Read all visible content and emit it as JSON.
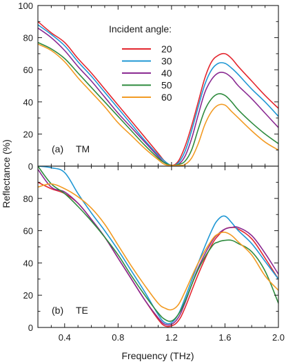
{
  "colors": {
    "20": "#e3262e",
    "30": "#1f97d4",
    "40": "#8a2a92",
    "50": "#2e8b3e",
    "60": "#f29a22",
    "axis": "#1a1a1a"
  },
  "chart_data": [
    {
      "id": "top",
      "type": "line",
      "panel_label": "(a)",
      "mode": "TM",
      "ylabel": "",
      "xlim": [
        0.2,
        2.0
      ],
      "ylim": [
        0,
        100
      ],
      "xticks": [
        0.4,
        0.8,
        1.2,
        1.6,
        2.0
      ],
      "yticks": [
        0,
        20,
        40,
        60,
        80,
        100
      ],
      "ytick_labels": [
        "0",
        "20",
        "40",
        "60",
        "80",
        "100"
      ],
      "legend_title": "Incident angle:",
      "legend_position": "top-right",
      "x": [
        0.2,
        0.3,
        0.4,
        0.5,
        0.6,
        0.7,
        0.8,
        0.9,
        1.0,
        1.1,
        1.15,
        1.2,
        1.25,
        1.3,
        1.35,
        1.4,
        1.45,
        1.5,
        1.55,
        1.6,
        1.65,
        1.7,
        1.8,
        1.9,
        2.0
      ],
      "series": [
        {
          "name": "20",
          "values": [
            90,
            83,
            77,
            67,
            58,
            48,
            38,
            28,
            18,
            8,
            3,
            0.5,
            3,
            12,
            25,
            40,
            55,
            65,
            69,
            70,
            67,
            62,
            53,
            44,
            36
          ]
        },
        {
          "name": "30",
          "values": [
            88,
            82,
            75,
            65,
            56,
            46,
            36,
            26,
            16,
            7,
            3,
            0.5,
            2,
            9,
            22,
            37,
            51,
            60,
            64,
            64,
            61,
            57,
            48,
            40,
            31
          ]
        },
        {
          "name": "40",
          "values": [
            86,
            80,
            72,
            62,
            53,
            43,
            33,
            24,
            15,
            6,
            2,
            0.5,
            1,
            6,
            17,
            32,
            46,
            54,
            58,
            58,
            55,
            50,
            42,
            33,
            24
          ]
        },
        {
          "name": "50",
          "values": [
            77,
            73,
            67,
            58,
            49,
            40,
            31,
            22,
            13,
            5,
            2,
            0.5,
            1,
            3,
            10,
            23,
            35,
            42,
            45,
            44,
            40,
            35,
            27,
            20,
            14
          ]
        },
        {
          "name": "60",
          "values": [
            76,
            72,
            65,
            55,
            46,
            37,
            27,
            19,
            11,
            4,
            1,
            0.5,
            0.5,
            1,
            5,
            14,
            26,
            34,
            38,
            38,
            34,
            30,
            22,
            15,
            10
          ]
        }
      ]
    },
    {
      "id": "bottom",
      "type": "line",
      "panel_label": "(b)",
      "mode": "TE",
      "xlabel": "Frequency (THz)",
      "xlim": [
        0.2,
        2.0
      ],
      "ylim": [
        0,
        100
      ],
      "xticks": [
        0.4,
        0.8,
        1.2,
        1.6,
        2.0
      ],
      "xtick_labels": [
        "0.4",
        "0.8",
        "1.2",
        "1.6",
        "2.0"
      ],
      "yticks": [
        0,
        20,
        40,
        60,
        80
      ],
      "ytick_labels": [
        "0",
        "20",
        "40",
        "60",
        "80"
      ],
      "x": [
        0.2,
        0.3,
        0.4,
        0.5,
        0.6,
        0.7,
        0.8,
        0.9,
        1.0,
        1.1,
        1.15,
        1.2,
        1.25,
        1.3,
        1.4,
        1.5,
        1.55,
        1.6,
        1.65,
        1.7,
        1.8,
        1.9,
        2.0
      ],
      "series": [
        {
          "name": "20",
          "values": [
            90,
            86,
            83,
            77,
            67,
            56,
            43,
            30,
            17,
            5,
            1,
            1,
            4,
            12,
            33,
            51,
            57,
            61,
            62,
            61,
            55,
            43,
            30
          ]
        },
        {
          "name": "30",
          "values": [
            100,
            99,
            96,
            83,
            71,
            60,
            48,
            35,
            22,
            8,
            3,
            3,
            8,
            18,
            40,
            60,
            67,
            69,
            65,
            60,
            52,
            41,
            30
          ]
        },
        {
          "name": "40",
          "values": [
            98,
            87,
            84,
            77,
            67,
            56,
            43,
            30,
            17,
            6,
            2,
            2,
            6,
            15,
            37,
            53,
            58,
            61,
            62,
            62,
            57,
            46,
            33
          ]
        },
        {
          "name": "50",
          "values": [
            100,
            89,
            83,
            75,
            66,
            56,
            45,
            32,
            20,
            9,
            5,
            4,
            8,
            16,
            36,
            50,
            53,
            54,
            54,
            52,
            47,
            35,
            15
          ]
        },
        {
          "name": "60",
          "values": [
            87,
            89,
            86,
            81,
            74,
            64,
            51,
            38,
            26,
            15,
            12,
            11,
            14,
            22,
            40,
            54,
            58,
            59,
            57,
            53,
            45,
            32,
            23
          ]
        }
      ]
    }
  ],
  "shared": {
    "ylabel": "Reflectance (%)",
    "xlabel": "Frequency (THz)"
  }
}
